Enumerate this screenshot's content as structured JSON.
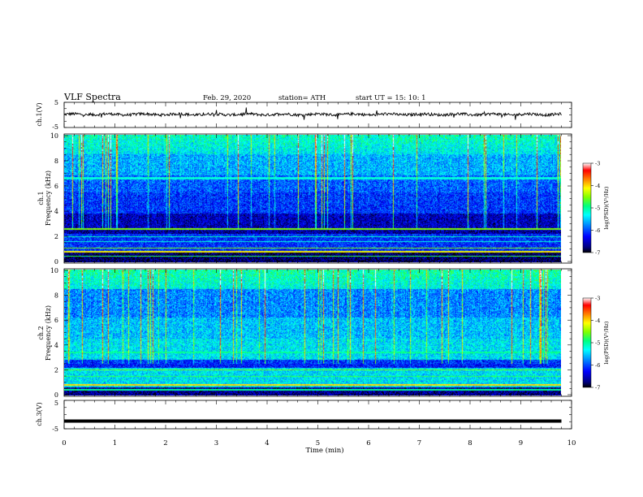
{
  "header": {
    "title": "VLF  Spectra",
    "date": "Feb. 29, 2020",
    "station": "station= ATH",
    "start": "start  UT  =    15: 10: 1"
  },
  "chart_data": [
    {
      "type": "line",
      "panel": "ch1-waveform",
      "ylabel": "ch.1(V)",
      "ylim": [
        -5,
        5
      ],
      "yticks": [
        "5",
        "-5"
      ],
      "xlim": [
        0,
        10
      ],
      "trace_level": 0.2,
      "color": "#000000"
    },
    {
      "type": "heatmap",
      "panel": "ch1-spectrogram",
      "ylabel": "ch.1\nFrequency (kHz)",
      "ylim": [
        0,
        10
      ],
      "yticks": [
        "0",
        "2",
        "4",
        "6",
        "8",
        "10"
      ],
      "xlim": [
        0,
        9.8
      ],
      "colorbar": {
        "label": "log(PSD)(V²/Hz)",
        "range": [
          -7,
          -3
        ],
        "ticks": [
          "-3",
          "-4",
          "-5",
          "-6",
          "-7"
        ]
      }
    },
    {
      "type": "heatmap",
      "panel": "ch2-spectrogram",
      "ylabel": "ch.2\nFrequency (kHz)",
      "ylim": [
        0,
        10
      ],
      "yticks": [
        "0",
        "2",
        "4",
        "6",
        "8",
        "10"
      ],
      "xlim": [
        0,
        9.8
      ],
      "colorbar": {
        "label": "log(PSD)(V²/Hz)",
        "range": [
          -7,
          -3
        ],
        "ticks": [
          "-3",
          "-4",
          "-5",
          "-6",
          "-7"
        ]
      }
    },
    {
      "type": "line",
      "panel": "ch3-waveform",
      "ylabel": "ch.3(V)",
      "ylim": [
        -5,
        5
      ],
      "yticks": [
        "5",
        "-5"
      ],
      "xlim": [
        0,
        10
      ],
      "trace_level": -2.3,
      "color": "#000000"
    }
  ],
  "xaxis": {
    "label": "Time  (min)",
    "range": [
      0,
      10
    ],
    "ticks": [
      "0",
      "1",
      "2",
      "3",
      "4",
      "5",
      "6",
      "7",
      "8",
      "9",
      "10"
    ]
  },
  "colors": {
    "colormap": [
      "#000000",
      "#00007f",
      "#0000ff",
      "#0080ff",
      "#00ffff",
      "#00ff80",
      "#80ff00",
      "#ffff00",
      "#ff8000",
      "#ff0000",
      "#ffffff"
    ]
  }
}
